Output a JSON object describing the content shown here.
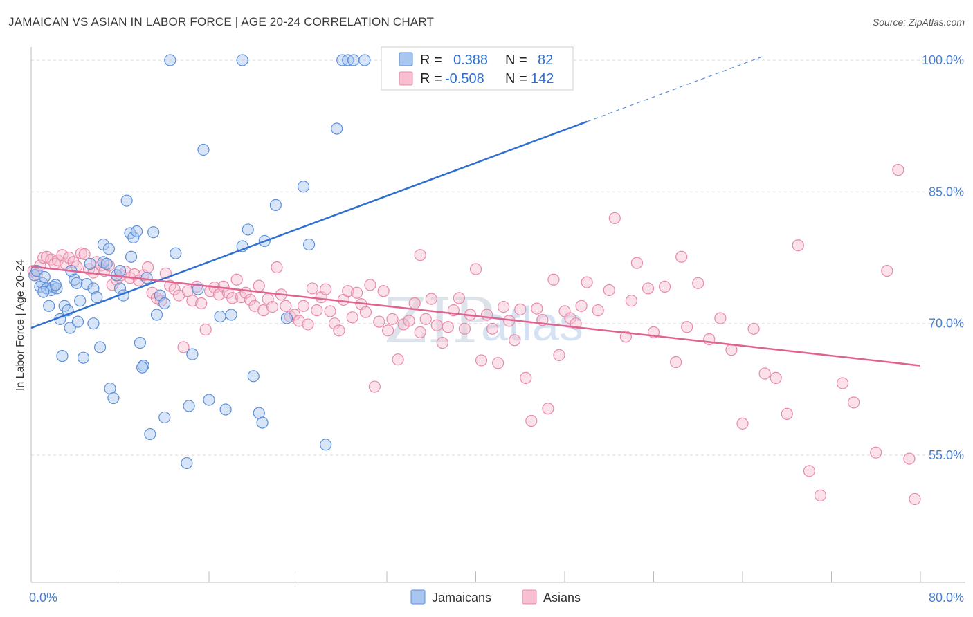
{
  "header": {
    "title": "JAMAICAN VS ASIAN IN LABOR FORCE | AGE 20-24 CORRELATION CHART",
    "source": "Source: ZipAtlas.com"
  },
  "watermark": {
    "zip": "ZIP",
    "atlas": "atlas"
  },
  "legend_box": {
    "r_label": "R =",
    "n_label": "N =",
    "series1": {
      "r": "0.388",
      "n": "82"
    },
    "series2": {
      "r": "-0.508",
      "n": "142"
    }
  },
  "bottom_legend": {
    "series1": "Jamaicans",
    "series2": "Asians"
  },
  "colors": {
    "blue_fill": "#a9c6f0",
    "blue_stroke": "#5b8fd8",
    "blue_line": "#2f6fd0",
    "pink_fill": "#f7bfd0",
    "pink_stroke": "#e889a8",
    "pink_line": "#e0628f",
    "grid": "#dadada"
  },
  "chart_data": {
    "type": "scatter",
    "title": "JAMAICAN VS ASIAN IN LABOR FORCE | AGE 20-24 CORRELATION CHART",
    "xlabel": "",
    "ylabel": "In Labor Force | Age 20-24",
    "x_tick_labels": [
      "0.0%",
      "80.0%"
    ],
    "y_tick_labels": [
      "100.0%",
      "85.0%",
      "70.0%",
      "55.0%"
    ],
    "y_ticks": [
      100,
      85,
      70,
      55
    ],
    "xlim": [
      0,
      80
    ],
    "ylim": [
      40.5,
      101.5
    ],
    "grid": true,
    "legend_position": "top-center",
    "series": [
      {
        "name": "Jamaicans",
        "color": "#5b8fd8",
        "r": 0.388,
        "n": 82,
        "trend": {
          "x0": 0,
          "y0": 69.5,
          "x1": 50,
          "y1": 93.0,
          "dashed_to_x": 66,
          "dashed_to_y": 100.5
        },
        "points": [
          [
            0.3,
            75.5
          ],
          [
            0.5,
            76.0
          ],
          [
            0.8,
            74.2
          ],
          [
            1.0,
            74.6
          ],
          [
            1.2,
            75.3
          ],
          [
            1.4,
            74.0
          ],
          [
            1.6,
            72.0
          ],
          [
            1.8,
            73.8
          ],
          [
            2.0,
            74.2
          ],
          [
            2.3,
            74.0
          ],
          [
            2.6,
            70.5
          ],
          [
            2.8,
            66.3
          ],
          [
            3.0,
            72.0
          ],
          [
            3.3,
            71.5
          ],
          [
            3.6,
            76.0
          ],
          [
            3.9,
            75.0
          ],
          [
            4.1,
            74.6
          ],
          [
            4.4,
            72.6
          ],
          [
            4.7,
            66.1
          ],
          [
            5.0,
            74.5
          ],
          [
            5.3,
            76.8
          ],
          [
            5.6,
            74.0
          ],
          [
            5.9,
            73.0
          ],
          [
            6.2,
            67.3
          ],
          [
            6.5,
            77.0
          ],
          [
            6.8,
            76.8
          ],
          [
            7.1,
            62.6
          ],
          [
            7.4,
            61.5
          ],
          [
            7.7,
            75.5
          ],
          [
            8.0,
            74.0
          ],
          [
            8.3,
            73.2
          ],
          [
            8.6,
            84.0
          ],
          [
            8.9,
            80.3
          ],
          [
            9.2,
            79.8
          ],
          [
            9.5,
            80.5
          ],
          [
            9.8,
            67.8
          ],
          [
            10.1,
            65.2
          ],
          [
            10.4,
            75.2
          ],
          [
            10.7,
            57.4
          ],
          [
            11.0,
            80.4
          ],
          [
            11.3,
            71.0
          ],
          [
            11.6,
            73.2
          ],
          [
            12.0,
            59.3
          ],
          [
            12.5,
            100.0
          ],
          [
            13.0,
            78.0
          ],
          [
            14.0,
            54.1
          ],
          [
            14.2,
            60.6
          ],
          [
            14.5,
            66.5
          ],
          [
            15.0,
            73.9
          ],
          [
            15.5,
            89.8
          ],
          [
            16.0,
            61.3
          ],
          [
            17.0,
            70.8
          ],
          [
            17.5,
            60.2
          ],
          [
            18.0,
            71.0
          ],
          [
            19.0,
            78.8
          ],
          [
            19.5,
            80.7
          ],
          [
            20.0,
            64.0
          ],
          [
            20.5,
            59.8
          ],
          [
            20.8,
            58.7
          ],
          [
            21.0,
            79.4
          ],
          [
            22.0,
            83.5
          ],
          [
            23.0,
            70.6
          ],
          [
            24.5,
            85.6
          ],
          [
            25.0,
            79.0
          ],
          [
            26.5,
            56.2
          ],
          [
            27.5,
            92.2
          ],
          [
            28.0,
            100.0
          ],
          [
            28.5,
            100.0
          ],
          [
            29.0,
            100.0
          ],
          [
            30.0,
            100.0
          ],
          [
            19.0,
            100.0
          ],
          [
            6.5,
            79.0
          ],
          [
            7.0,
            78.5
          ],
          [
            3.5,
            69.5
          ],
          [
            4.2,
            70.2
          ],
          [
            5.6,
            70.0
          ],
          [
            1.1,
            73.6
          ],
          [
            2.2,
            74.4
          ],
          [
            10.0,
            65.0
          ],
          [
            12.0,
            72.3
          ],
          [
            8.0,
            76.0
          ],
          [
            9.0,
            77.6
          ]
        ]
      },
      {
        "name": "Asians",
        "color": "#e889a8",
        "r": -0.508,
        "n": 142,
        "trend": {
          "x0": 0,
          "y0": 76.5,
          "x1": 80,
          "y1": 65.2
        },
        "points": [
          [
            0.2,
            76.0
          ],
          [
            0.5,
            75.6
          ],
          [
            0.8,
            76.6
          ],
          [
            1.1,
            77.5
          ],
          [
            1.4,
            77.6
          ],
          [
            1.8,
            77.3
          ],
          [
            2.1,
            76.8
          ],
          [
            2.4,
            77.2
          ],
          [
            2.8,
            77.8
          ],
          [
            3.1,
            76.8
          ],
          [
            3.4,
            77.5
          ],
          [
            3.8,
            77.0
          ],
          [
            4.1,
            76.5
          ],
          [
            4.5,
            78.0
          ],
          [
            4.8,
            77.9
          ],
          [
            5.2,
            76.2
          ],
          [
            5.6,
            75.8
          ],
          [
            5.9,
            77.0
          ],
          [
            6.3,
            76.6
          ],
          [
            6.6,
            76.0
          ],
          [
            7.0,
            76.6
          ],
          [
            7.3,
            74.4
          ],
          [
            7.7,
            75.0
          ],
          [
            8.1,
            75.5
          ],
          [
            8.5,
            75.9
          ],
          [
            8.9,
            75.2
          ],
          [
            9.3,
            75.6
          ],
          [
            9.7,
            74.9
          ],
          [
            10.1,
            75.5
          ],
          [
            10.5,
            76.4
          ],
          [
            10.9,
            73.5
          ],
          [
            11.3,
            72.9
          ],
          [
            11.7,
            72.6
          ],
          [
            12.1,
            75.7
          ],
          [
            12.5,
            74.3
          ],
          [
            12.9,
            73.9
          ],
          [
            13.3,
            73.2
          ],
          [
            13.7,
            67.3
          ],
          [
            14.1,
            73.7
          ],
          [
            14.5,
            72.6
          ],
          [
            14.9,
            74.2
          ],
          [
            15.3,
            72.3
          ],
          [
            15.7,
            69.3
          ],
          [
            16.1,
            73.7
          ],
          [
            16.5,
            74.1
          ],
          [
            16.9,
            73.3
          ],
          [
            17.3,
            74.2
          ],
          [
            17.7,
            73.5
          ],
          [
            18.1,
            72.9
          ],
          [
            18.5,
            75.0
          ],
          [
            18.9,
            73.0
          ],
          [
            19.3,
            73.5
          ],
          [
            19.7,
            72.7
          ],
          [
            20.1,
            72.0
          ],
          [
            20.5,
            74.3
          ],
          [
            20.9,
            71.5
          ],
          [
            21.3,
            72.8
          ],
          [
            21.7,
            71.9
          ],
          [
            22.1,
            76.4
          ],
          [
            22.5,
            73.3
          ],
          [
            22.9,
            72.0
          ],
          [
            23.3,
            70.8
          ],
          [
            23.7,
            71.0
          ],
          [
            24.1,
            70.3
          ],
          [
            24.5,
            72.0
          ],
          [
            24.9,
            69.9
          ],
          [
            25.3,
            74.0
          ],
          [
            25.7,
            71.5
          ],
          [
            26.1,
            73.0
          ],
          [
            26.5,
            73.9
          ],
          [
            26.9,
            71.4
          ],
          [
            27.3,
            70.0
          ],
          [
            27.7,
            69.2
          ],
          [
            28.1,
            72.7
          ],
          [
            28.5,
            73.7
          ],
          [
            28.9,
            70.7
          ],
          [
            29.3,
            73.5
          ],
          [
            29.7,
            72.2
          ],
          [
            30.1,
            71.3
          ],
          [
            30.5,
            74.4
          ],
          [
            30.9,
            62.8
          ],
          [
            31.3,
            70.2
          ],
          [
            31.7,
            73.7
          ],
          [
            32.1,
            69.2
          ],
          [
            32.5,
            70.5
          ],
          [
            33.0,
            65.9
          ],
          [
            33.5,
            69.9
          ],
          [
            34.0,
            70.3
          ],
          [
            34.5,
            72.3
          ],
          [
            35.0,
            69.0
          ],
          [
            35.5,
            70.5
          ],
          [
            36.0,
            72.8
          ],
          [
            36.5,
            69.8
          ],
          [
            37.0,
            67.8
          ],
          [
            37.5,
            69.6
          ],
          [
            38.0,
            71.5
          ],
          [
            38.5,
            72.9
          ],
          [
            39.0,
            69.4
          ],
          [
            39.5,
            71.0
          ],
          [
            40.0,
            76.2
          ],
          [
            40.5,
            65.8
          ],
          [
            41.0,
            71.0
          ],
          [
            41.5,
            69.4
          ],
          [
            42.0,
            65.5
          ],
          [
            42.5,
            71.9
          ],
          [
            43.0,
            70.3
          ],
          [
            43.5,
            68.1
          ],
          [
            44.0,
            71.6
          ],
          [
            44.5,
            63.8
          ],
          [
            45.0,
            58.9
          ],
          [
            45.5,
            71.7
          ],
          [
            46.0,
            70.4
          ],
          [
            46.5,
            60.3
          ],
          [
            47.0,
            75.0
          ],
          [
            47.5,
            66.4
          ],
          [
            48.0,
            71.4
          ],
          [
            48.5,
            70.6
          ],
          [
            49.0,
            70.0
          ],
          [
            49.5,
            72.0
          ],
          [
            50.0,
            74.7
          ],
          [
            51.0,
            71.5
          ],
          [
            52.0,
            73.8
          ],
          [
            52.5,
            82.0
          ],
          [
            53.5,
            68.5
          ],
          [
            54.0,
            72.6
          ],
          [
            54.5,
            76.9
          ],
          [
            55.5,
            74.0
          ],
          [
            56.0,
            69.0
          ],
          [
            57.0,
            74.2
          ],
          [
            58.0,
            65.6
          ],
          [
            59.0,
            69.6
          ],
          [
            60.0,
            74.6
          ],
          [
            61.0,
            68.2
          ],
          [
            62.0,
            70.6
          ],
          [
            63.0,
            67.0
          ],
          [
            64.0,
            58.6
          ],
          [
            65.0,
            69.4
          ],
          [
            66.0,
            64.3
          ],
          [
            67.0,
            63.8
          ],
          [
            68.0,
            59.7
          ],
          [
            69.0,
            78.9
          ],
          [
            70.0,
            53.2
          ],
          [
            71.0,
            50.4
          ],
          [
            73.0,
            63.2
          ],
          [
            74.0,
            61.0
          ],
          [
            76.0,
            55.3
          ],
          [
            77.0,
            76.0
          ],
          [
            78.0,
            87.5
          ],
          [
            79.0,
            54.6
          ],
          [
            79.5,
            50.0
          ],
          [
            35.0,
            77.8
          ],
          [
            58.5,
            77.6
          ]
        ]
      }
    ]
  }
}
